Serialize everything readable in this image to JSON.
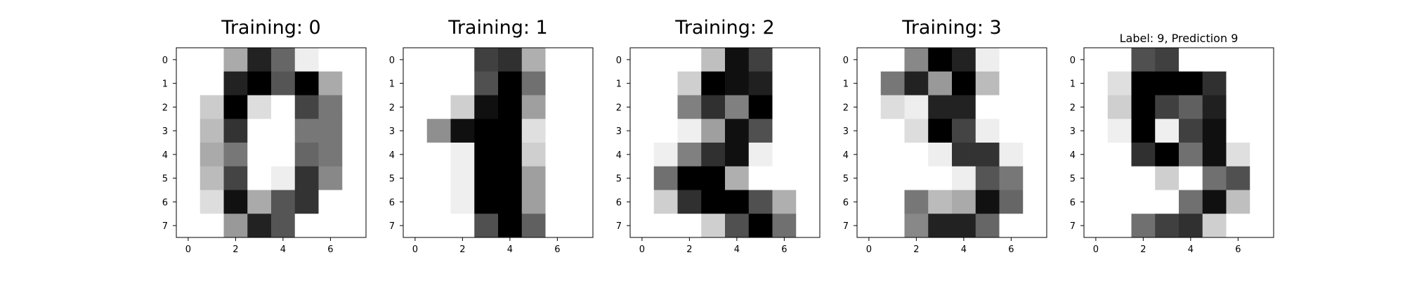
{
  "chart_data": [
    {
      "type": "heatmap",
      "title": "Training: 0",
      "colormap": "gray_r",
      "x_ticks": [
        "0",
        "2",
        "4",
        "6"
      ],
      "y_ticks": [
        "0",
        "1",
        "2",
        "3",
        "4",
        "5",
        "6",
        "7"
      ],
      "xlim": [
        -0.5,
        7.5
      ],
      "ylim": [
        7.5,
        -0.5
      ],
      "values": [
        [
          0,
          0,
          5,
          13,
          9,
          1,
          0,
          0
        ],
        [
          0,
          0,
          13,
          15,
          10,
          15,
          5,
          0
        ],
        [
          0,
          3,
          15,
          2,
          0,
          11,
          8,
          0
        ],
        [
          0,
          4,
          12,
          0,
          0,
          8,
          8,
          0
        ],
        [
          0,
          5,
          8,
          0,
          0,
          9,
          8,
          0
        ],
        [
          0,
          4,
          11,
          0,
          1,
          12,
          7,
          0
        ],
        [
          0,
          2,
          14,
          5,
          10,
          12,
          0,
          0
        ],
        [
          0,
          0,
          6,
          13,
          10,
          0,
          0,
          0
        ]
      ]
    },
    {
      "type": "heatmap",
      "title": "Training: 1",
      "colormap": "gray_r",
      "x_ticks": [
        "0",
        "2",
        "4",
        "6"
      ],
      "y_ticks": [
        "0",
        "1",
        "2",
        "3",
        "4",
        "5",
        "6",
        "7"
      ],
      "xlim": [
        -0.5,
        7.5
      ],
      "ylim": [
        7.5,
        -0.5
      ],
      "values": [
        [
          0,
          0,
          0,
          12,
          13,
          5,
          0,
          0
        ],
        [
          0,
          0,
          0,
          11,
          16,
          9,
          0,
          0
        ],
        [
          0,
          0,
          3,
          15,
          16,
          6,
          0,
          0
        ],
        [
          0,
          7,
          15,
          16,
          16,
          2,
          0,
          0
        ],
        [
          0,
          0,
          1,
          16,
          16,
          3,
          0,
          0
        ],
        [
          0,
          0,
          1,
          16,
          16,
          6,
          0,
          0
        ],
        [
          0,
          0,
          1,
          16,
          16,
          6,
          0,
          0
        ],
        [
          0,
          0,
          0,
          11,
          16,
          10,
          0,
          0
        ]
      ]
    },
    {
      "type": "heatmap",
      "title": "Training: 2",
      "colormap": "gray_r",
      "x_ticks": [
        "0",
        "2",
        "4",
        "6"
      ],
      "y_ticks": [
        "0",
        "1",
        "2",
        "3",
        "4",
        "5",
        "6",
        "7"
      ],
      "xlim": [
        -0.5,
        7.5
      ],
      "ylim": [
        7.5,
        -0.5
      ],
      "values": [
        [
          0,
          0,
          0,
          4,
          15,
          12,
          0,
          0
        ],
        [
          0,
          0,
          3,
          16,
          15,
          14,
          0,
          0
        ],
        [
          0,
          0,
          8,
          13,
          8,
          16,
          0,
          0
        ],
        [
          0,
          0,
          1,
          6,
          15,
          11,
          0,
          0
        ],
        [
          0,
          1,
          8,
          13,
          15,
          1,
          0,
          0
        ],
        [
          0,
          9,
          16,
          16,
          5,
          0,
          0,
          0
        ],
        [
          0,
          3,
          13,
          16,
          16,
          11,
          5,
          0
        ],
        [
          0,
          0,
          0,
          3,
          11,
          16,
          9,
          0
        ]
      ]
    },
    {
      "type": "heatmap",
      "title": "Training: 3",
      "colormap": "gray_r",
      "x_ticks": [
        "0",
        "2",
        "4",
        "6"
      ],
      "y_ticks": [
        "0",
        "1",
        "2",
        "3",
        "4",
        "5",
        "6",
        "7"
      ],
      "xlim": [
        -0.5,
        7.5
      ],
      "ylim": [
        7.5,
        -0.5
      ],
      "values": [
        [
          0,
          0,
          7,
          15,
          13,
          1,
          0,
          0
        ],
        [
          0,
          8,
          13,
          6,
          15,
          4,
          0,
          0
        ],
        [
          0,
          2,
          1,
          13,
          13,
          0,
          0,
          0
        ],
        [
          0,
          0,
          2,
          15,
          11,
          1,
          0,
          0
        ],
        [
          0,
          0,
          0,
          1,
          12,
          12,
          1,
          0
        ],
        [
          0,
          0,
          0,
          0,
          1,
          10,
          8,
          0
        ],
        [
          0,
          0,
          8,
          4,
          5,
          14,
          9,
          0
        ],
        [
          0,
          0,
          7,
          13,
          13,
          9,
          0,
          0
        ]
      ]
    },
    {
      "type": "heatmap",
      "title": "Label: 9, Prediction 9",
      "colormap": "gray_r",
      "x_ticks": [
        "0",
        "2",
        "4",
        "6"
      ],
      "y_ticks": [
        "0",
        "1",
        "2",
        "3",
        "4",
        "5",
        "6",
        "7"
      ],
      "xlim": [
        -0.5,
        7.5
      ],
      "ylim": [
        7.5,
        -0.5
      ],
      "values": [
        [
          0,
          0,
          11,
          12,
          0,
          0,
          0,
          0
        ],
        [
          0,
          2,
          16,
          16,
          16,
          13,
          0,
          0
        ],
        [
          0,
          3,
          16,
          12,
          10,
          14,
          0,
          0
        ],
        [
          0,
          1,
          16,
          1,
          12,
          15,
          0,
          0
        ],
        [
          0,
          0,
          13,
          16,
          9,
          15,
          2,
          0
        ],
        [
          0,
          0,
          0,
          3,
          0,
          9,
          11,
          0
        ],
        [
          0,
          0,
          0,
          0,
          9,
          15,
          4,
          0
        ],
        [
          0,
          0,
          9,
          12,
          13,
          3,
          0,
          0
        ]
      ]
    }
  ]
}
